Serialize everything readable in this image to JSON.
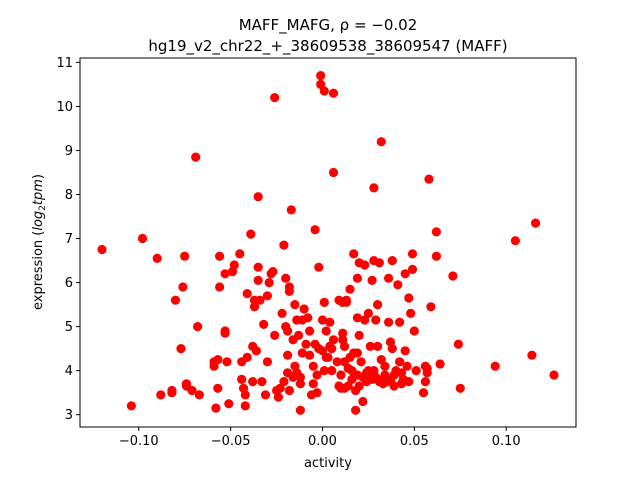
{
  "chart_data": {
    "type": "scatter",
    "title_line1": "MAFF_MAFG, ρ = −0.02",
    "title_line2": "hg19_v2_chr22_+_38609538_38609547 (MAFF)",
    "xlabel": "activity",
    "ylabel_prefix": "expression (",
    "ylabel_italic": "log",
    "ylabel_sub": "2",
    "ylabel_italic2": "tpm",
    "ylabel_suffix": ")",
    "xlim": [
      -0.132,
      0.138
    ],
    "ylim": [
      2.72,
      11.1
    ],
    "xticks": [
      -0.1,
      -0.05,
      0.0,
      0.05,
      0.1
    ],
    "xtick_labels": [
      "−0.10",
      "−0.05",
      "0.00",
      "0.05",
      "0.10"
    ],
    "yticks": [
      3,
      4,
      5,
      6,
      7,
      8,
      9,
      10,
      11
    ],
    "ytick_labels": [
      "3",
      "4",
      "5",
      "6",
      "7",
      "8",
      "9",
      "10",
      "11"
    ],
    "marker_color": "#ff0000",
    "points": [
      [
        -0.12,
        6.75
      ],
      [
        -0.104,
        3.2
      ],
      [
        -0.098,
        7.0
      ],
      [
        -0.09,
        6.55
      ],
      [
        -0.088,
        3.45
      ],
      [
        -0.082,
        3.55
      ],
      [
        -0.082,
        3.5
      ],
      [
        -0.08,
        5.6
      ],
      [
        -0.077,
        4.5
      ],
      [
        -0.076,
        5.9
      ],
      [
        -0.075,
        6.6
      ],
      [
        -0.074,
        3.7
      ],
      [
        -0.074,
        3.65
      ],
      [
        -0.071,
        3.55
      ],
      [
        -0.069,
        8.85
      ],
      [
        -0.068,
        5.0
      ],
      [
        -0.067,
        3.45
      ],
      [
        -0.059,
        4.2
      ],
      [
        -0.059,
        4.1
      ],
      [
        -0.058,
        3.15
      ],
      [
        -0.057,
        4.25
      ],
      [
        -0.057,
        3.6
      ],
      [
        -0.056,
        6.6
      ],
      [
        -0.056,
        5.9
      ],
      [
        -0.053,
        6.2
      ],
      [
        -0.053,
        4.9
      ],
      [
        -0.053,
        4.85
      ],
      [
        -0.052,
        4.2
      ],
      [
        -0.051,
        3.25
      ],
      [
        -0.049,
        6.25
      ],
      [
        -0.048,
        6.4
      ],
      [
        -0.045,
        6.65
      ],
      [
        -0.044,
        4.2
      ],
      [
        -0.044,
        3.8
      ],
      [
        -0.043,
        3.6
      ],
      [
        -0.042,
        3.45
      ],
      [
        -0.042,
        3.2
      ],
      [
        -0.041,
        5.75
      ],
      [
        -0.041,
        4.3
      ],
      [
        -0.039,
        7.1
      ],
      [
        -0.038,
        4.55
      ],
      [
        -0.038,
        3.75
      ],
      [
        -0.037,
        5.6
      ],
      [
        -0.037,
        5.45
      ],
      [
        -0.036,
        4.45
      ],
      [
        -0.035,
        7.95
      ],
      [
        -0.035,
        6.35
      ],
      [
        -0.035,
        6.05
      ],
      [
        -0.034,
        5.6
      ],
      [
        -0.033,
        3.75
      ],
      [
        -0.032,
        5.05
      ],
      [
        -0.031,
        3.45
      ],
      [
        -0.03,
        5.7
      ],
      [
        -0.03,
        4.2
      ],
      [
        -0.029,
        6.0
      ],
      [
        -0.028,
        6.2
      ],
      [
        -0.027,
        6.25
      ],
      [
        -0.026,
        10.2
      ],
      [
        -0.026,
        4.8
      ],
      [
        -0.025,
        3.55
      ],
      [
        -0.024,
        3.4
      ],
      [
        -0.023,
        3.6
      ],
      [
        -0.022,
        5.3
      ],
      [
        -0.021,
        6.85
      ],
      [
        -0.021,
        3.75
      ],
      [
        -0.02,
        6.1
      ],
      [
        -0.02,
        5.0
      ],
      [
        -0.019,
        4.9
      ],
      [
        -0.019,
        4.35
      ],
      [
        -0.019,
        3.95
      ],
      [
        -0.018,
        5.9
      ],
      [
        -0.018,
        5.8
      ],
      [
        -0.018,
        3.55
      ],
      [
        -0.017,
        7.65
      ],
      [
        -0.016,
        4.7
      ],
      [
        -0.016,
        3.85
      ],
      [
        -0.015,
        5.5
      ],
      [
        -0.015,
        4.1
      ],
      [
        -0.014,
        5.15
      ],
      [
        -0.014,
        3.95
      ],
      [
        -0.013,
        4.8
      ],
      [
        -0.012,
        3.1
      ],
      [
        -0.012,
        3.85
      ],
      [
        -0.012,
        3.7
      ],
      [
        -0.011,
        5.15
      ],
      [
        -0.011,
        4.4
      ],
      [
        -0.01,
        5.4
      ],
      [
        -0.009,
        4.6
      ],
      [
        -0.008,
        5.2
      ],
      [
        -0.007,
        4.9
      ],
      [
        -0.007,
        4.35
      ],
      [
        -0.006,
        3.45
      ],
      [
        -0.005,
        3.7
      ],
      [
        -0.005,
        4.1
      ],
      [
        -0.004,
        7.2
      ],
      [
        -0.004,
        4.6
      ],
      [
        -0.003,
        3.9
      ],
      [
        -0.003,
        3.5
      ],
      [
        -0.002,
        6.35
      ],
      [
        -0.002,
        4.5
      ],
      [
        -0.001,
        10.7
      ],
      [
        -0.001,
        10.5
      ],
      [
        0.0,
        5.15
      ],
      [
        0.0,
        4.45
      ],
      [
        0.001,
        10.35
      ],
      [
        0.001,
        5.55
      ],
      [
        0.001,
        4.0
      ],
      [
        0.002,
        4.9
      ],
      [
        0.002,
        4.3
      ],
      [
        0.003,
        4.3
      ],
      [
        0.004,
        5.1
      ],
      [
        0.004,
        4.55
      ],
      [
        0.005,
        4.5
      ],
      [
        0.005,
        4.0
      ],
      [
        0.006,
        4.7
      ],
      [
        0.006,
        10.3
      ],
      [
        0.006,
        8.5
      ],
      [
        0.008,
        4.2
      ],
      [
        0.009,
        5.6
      ],
      [
        0.009,
        3.65
      ],
      [
        0.01,
        3.9
      ],
      [
        0.01,
        3.6
      ],
      [
        0.011,
        5.55
      ],
      [
        0.011,
        4.85
      ],
      [
        0.011,
        4.7
      ],
      [
        0.012,
        4.55
      ],
      [
        0.012,
        4.2
      ],
      [
        0.012,
        3.6
      ],
      [
        0.013,
        5.6
      ],
      [
        0.013,
        5.55
      ],
      [
        0.014,
        4.05
      ],
      [
        0.014,
        3.65
      ],
      [
        0.015,
        5.85
      ],
      [
        0.015,
        4.3
      ],
      [
        0.016,
        4.0
      ],
      [
        0.016,
        3.8
      ],
      [
        0.017,
        6.65
      ],
      [
        0.017,
        4.4
      ],
      [
        0.018,
        3.55
      ],
      [
        0.018,
        3.1
      ],
      [
        0.019,
        6.1
      ],
      [
        0.019,
        5.2
      ],
      [
        0.019,
        4.4
      ],
      [
        0.019,
        3.9
      ],
      [
        0.02,
        6.45
      ],
      [
        0.02,
        4.8
      ],
      [
        0.02,
        3.65
      ],
      [
        0.021,
        4.2
      ],
      [
        0.022,
        3.85
      ],
      [
        0.022,
        3.3
      ],
      [
        0.023,
        6.4
      ],
      [
        0.023,
        5.15
      ],
      [
        0.024,
        3.95
      ],
      [
        0.024,
        3.75
      ],
      [
        0.025,
        5.3
      ],
      [
        0.025,
        4.0
      ],
      [
        0.026,
        4.55
      ],
      [
        0.026,
        3.85
      ],
      [
        0.027,
        6.05
      ],
      [
        0.027,
        3.8
      ],
      [
        0.028,
        8.15
      ],
      [
        0.028,
        6.5
      ],
      [
        0.028,
        4.0
      ],
      [
        0.029,
        5.15
      ],
      [
        0.029,
        3.85
      ],
      [
        0.03,
        5.5
      ],
      [
        0.03,
        4.55
      ],
      [
        0.03,
        3.8
      ],
      [
        0.031,
        6.45
      ],
      [
        0.031,
        3.75
      ],
      [
        0.032,
        9.2
      ],
      [
        0.032,
        4.25
      ],
      [
        0.033,
        3.7
      ],
      [
        0.034,
        4.1
      ],
      [
        0.034,
        3.9
      ],
      [
        0.035,
        3.75
      ],
      [
        0.036,
        6.1
      ],
      [
        0.036,
        5.1
      ],
      [
        0.037,
        4.65
      ],
      [
        0.037,
        3.8
      ],
      [
        0.038,
        6.5
      ],
      [
        0.038,
        4.5
      ],
      [
        0.039,
        3.9
      ],
      [
        0.039,
        3.65
      ],
      [
        0.04,
        4.0
      ],
      [
        0.041,
        5.95
      ],
      [
        0.042,
        5.1
      ],
      [
        0.042,
        4.2
      ],
      [
        0.043,
        3.95
      ],
      [
        0.043,
        3.7
      ],
      [
        0.044,
        3.8
      ],
      [
        0.045,
        6.2
      ],
      [
        0.045,
        4.45
      ],
      [
        0.046,
        4.1
      ],
      [
        0.047,
        5.65
      ],
      [
        0.047,
        3.75
      ],
      [
        0.048,
        5.3
      ],
      [
        0.049,
        6.65
      ],
      [
        0.049,
        6.3
      ],
      [
        0.05,
        4.9
      ],
      [
        0.051,
        4.0
      ],
      [
        0.055,
        3.5
      ],
      [
        0.056,
        3.75
      ],
      [
        0.056,
        4.1
      ],
      [
        0.057,
        4.05
      ],
      [
        0.057,
        3.95
      ],
      [
        0.058,
        8.35
      ],
      [
        0.059,
        5.45
      ],
      [
        0.062,
        7.15
      ],
      [
        0.062,
        6.6
      ],
      [
        0.064,
        4.15
      ],
      [
        0.071,
        6.15
      ],
      [
        0.074,
        4.6
      ],
      [
        0.075,
        3.6
      ],
      [
        0.094,
        4.1
      ],
      [
        0.105,
        6.95
      ],
      [
        0.114,
        4.35
      ],
      [
        0.116,
        7.35
      ],
      [
        0.126,
        3.9
      ]
    ]
  }
}
